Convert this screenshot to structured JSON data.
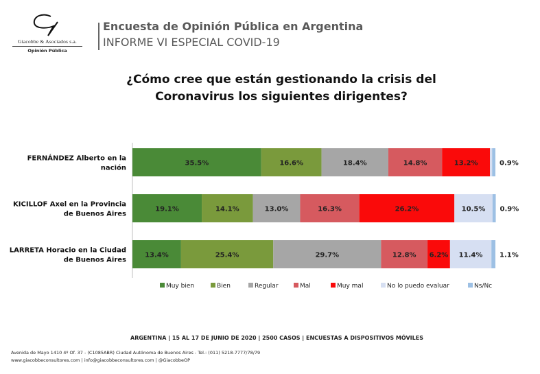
{
  "header": {
    "logo_firm": "Giacobbe & Asociados s.a.",
    "logo_sub": "Opinión Pública",
    "title": "Encuesta de Opinión Pública en Argentina",
    "subtitle": "INFORME VI ESPECIAL COVID-19"
  },
  "chart_data": {
    "type": "bar",
    "orientation": "horizontal-stacked-100",
    "title": "¿Cómo cree que están gestionando la crisis del Coronavirus los siguientes dirigentes?",
    "title_lines": [
      "¿Cómo cree que están gestionando la crisis del",
      "Coronavirus los siguientes dirigentes?"
    ],
    "categories": [
      [
        "FERNÁNDEZ Alberto en la",
        "nación"
      ],
      [
        "KICILLOF Axel en la Provincia",
        "de Buenos Aires"
      ],
      [
        "LARRETA Horacio en la Ciudad",
        "de Buenos Aires"
      ]
    ],
    "series": [
      {
        "name": "Muy bien",
        "color": "#4a8a37",
        "values": [
          35.5,
          19.1,
          13.4
        ],
        "labels": [
          "35.5%",
          "19.1%",
          "13.4%"
        ]
      },
      {
        "name": "Bien",
        "color": "#7a9a3c",
        "values": [
          16.6,
          14.1,
          25.4
        ],
        "labels": [
          "16.6%",
          "14.1%",
          "25.4%"
        ]
      },
      {
        "name": "Regular",
        "color": "#a6a6a6",
        "values": [
          18.4,
          13.0,
          29.7
        ],
        "labels": [
          "18.4%",
          "13.0%",
          "29.7%"
        ]
      },
      {
        "name": "Mal",
        "color": "#d65a5f",
        "values": [
          14.8,
          16.3,
          12.8
        ],
        "labels": [
          "14.8%",
          "16.3%",
          "12.8%"
        ]
      },
      {
        "name": "Muy mal",
        "color": "#fa0a0a",
        "values": [
          13.2,
          26.2,
          6.2
        ],
        "labels": [
          "13.2%",
          "26.2%",
          "6.2%"
        ]
      },
      {
        "name": "No lo puedo evaluar",
        "color": "#d6dff2",
        "values": [
          0.6,
          10.5,
          11.4
        ],
        "labels": [
          "",
          "10.5%",
          "11.4%"
        ]
      },
      {
        "name": "Ns/Nc",
        "color": "#9dc0e4",
        "values": [
          0.9,
          0.9,
          1.1
        ],
        "labels": [
          "0.9%",
          "0.9%",
          "1.1%"
        ]
      }
    ],
    "xlim": [
      0,
      100
    ],
    "legend_position": "bottom"
  },
  "footer": {
    "survey_info": "ARGENTINA | 15 AL 17 DE JUNIO DE 2020 | 2500 CASOS | ENCUESTAS A DISPOSITIVOS MÓVILES",
    "address": "Avenida de Mayo 1410 4º Of. 37 - (C1085ABR) Ciudad Autónoma de Buenos Aires - Tel.: (011) 5218-7777/78/79",
    "contact": "www.giacobbeconsultores.com | info@giacobbeconsultores.com | @GiacobbeOP"
  }
}
